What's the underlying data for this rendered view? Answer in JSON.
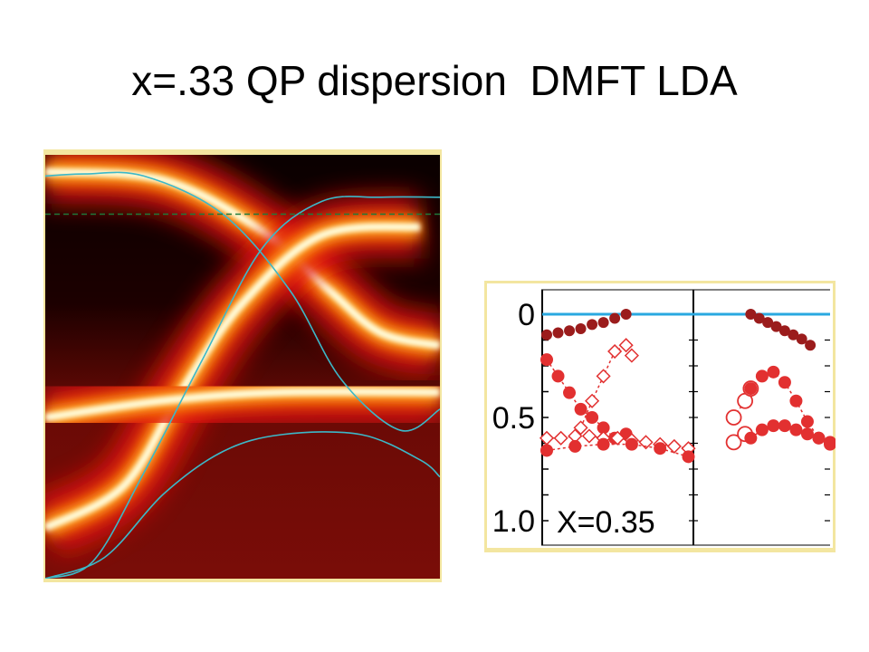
{
  "slide": {
    "title": "x=.33 QP dispersion  DMFT LDA"
  },
  "colors": {
    "lda_bands": "#3cb8c8",
    "fermi_line_dashed": "#1f7a3a",
    "heatmap_high": "#ffffe0",
    "heatmap_low": "#140000",
    "heatmap_mid": "#e02010",
    "arpes_dark": "#9b1c1c",
    "arpes_red": "#e23030",
    "arpes_fermi": "#29a8e0",
    "panel_border": "#f3e6a0"
  },
  "chart_data": [
    {
      "type": "heatmap",
      "title": "",
      "xlabel": "",
      "ylabel": "",
      "description_series": [
        {
          "name": "",
          "role": "dmft-spectral-band",
          "x": [
            0,
            0.3,
            0.55,
            0.72,
            0.85,
            1.0
          ],
          "y": [
            0.04,
            0.06,
            0.18,
            0.32,
            0.42,
            0.45
          ]
        },
        {
          "name": "",
          "role": "dmft-spectral-band",
          "x": [
            0,
            0.2,
            0.35,
            0.5,
            0.7,
            0.95
          ],
          "y": [
            0.88,
            0.78,
            0.55,
            0.35,
            0.19,
            0.17
          ]
        },
        {
          "name": "",
          "role": "dmft-spectral-band",
          "x": [
            0,
            0.3,
            0.6,
            1.0
          ],
          "y": [
            0.62,
            0.58,
            0.56,
            0.56
          ]
        }
      ],
      "lda_series": [
        {
          "name": "",
          "x": [
            0,
            0.1,
            0.25,
            0.45,
            0.62,
            0.75,
            0.9,
            1.0
          ],
          "y": [
            0.05,
            0.045,
            0.05,
            0.14,
            0.32,
            0.53,
            0.65,
            0.6
          ]
        },
        {
          "name": "",
          "x": [
            0,
            0.12,
            0.25,
            0.4,
            0.55,
            0.7,
            0.85,
            1.0
          ],
          "y": [
            1.0,
            0.96,
            0.75,
            0.48,
            0.22,
            0.11,
            0.1,
            0.1
          ]
        },
        {
          "name": "",
          "x": [
            0,
            0.15,
            0.3,
            0.45,
            0.6,
            0.8,
            0.95,
            1.0
          ],
          "y": [
            1.0,
            0.95,
            0.8,
            0.7,
            0.66,
            0.66,
            0.72,
            0.76
          ]
        }
      ],
      "fermi_level_y": 0.14
    },
    {
      "type": "scatter",
      "title": "",
      "annotation": "X=0.35",
      "ytick_labels": [
        "0",
        "0.5",
        "1.0"
      ],
      "yticks": [
        0,
        0.5,
        1.0
      ],
      "ylim": [
        0,
        1.1
      ],
      "fermi_level": 0,
      "series": [
        {
          "name": "",
          "marker": "filled-dark",
          "x": [
            0.0,
            0.04,
            0.08,
            0.12,
            0.16,
            0.2,
            0.24,
            0.28
          ],
          "y": [
            0.1,
            0.09,
            0.08,
            0.07,
            0.05,
            0.04,
            0.02,
            0.0
          ]
        },
        {
          "name": "",
          "marker": "filled-dark",
          "x": [
            0.72,
            0.75,
            0.78,
            0.81,
            0.84,
            0.87,
            0.9,
            0.93
          ],
          "y": [
            0.0,
            0.02,
            0.04,
            0.06,
            0.08,
            0.1,
            0.12,
            0.15
          ]
        },
        {
          "name": "",
          "marker": "filled-red",
          "x": [
            0.0,
            0.04,
            0.08,
            0.12,
            0.16,
            0.2,
            0.24,
            0.28
          ],
          "y": [
            0.22,
            0.3,
            0.38,
            0.46,
            0.5,
            0.55,
            0.6,
            0.58
          ]
        },
        {
          "name": "",
          "marker": "open-diamond",
          "x": [
            0.0,
            0.05,
            0.1,
            0.15,
            0.2,
            0.25,
            0.3,
            0.35,
            0.4,
            0.45,
            0.5
          ],
          "y": [
            0.6,
            0.6,
            0.59,
            0.59,
            0.6,
            0.6,
            0.61,
            0.62,
            0.63,
            0.64,
            0.65
          ]
        },
        {
          "name": "",
          "marker": "open-diamond",
          "x": [
            0.12,
            0.16,
            0.2,
            0.24,
            0.28,
            0.3
          ],
          "y": [
            0.55,
            0.42,
            0.3,
            0.18,
            0.15,
            0.2
          ]
        },
        {
          "name": "",
          "marker": "filled-red",
          "x": [
            0.0,
            0.1,
            0.2,
            0.3,
            0.4,
            0.5
          ],
          "y": [
            0.66,
            0.64,
            0.63,
            0.63,
            0.65,
            0.69
          ]
        },
        {
          "name": "",
          "marker": "open-circle",
          "x": [
            0.66,
            0.7,
            0.72
          ],
          "y": [
            0.5,
            0.42,
            0.36
          ]
        },
        {
          "name": "",
          "marker": "open-circle",
          "x": [
            0.66,
            0.7
          ],
          "y": [
            0.62,
            0.58
          ]
        },
        {
          "name": "",
          "marker": "filled-red",
          "x": [
            0.72,
            0.76,
            0.8,
            0.84,
            0.88,
            0.92,
            0.96,
            1.0
          ],
          "y": [
            0.36,
            0.3,
            0.28,
            0.33,
            0.42,
            0.52,
            0.6,
            0.63
          ]
        },
        {
          "name": "",
          "marker": "filled-red",
          "x": [
            0.72,
            0.76,
            0.8,
            0.84,
            0.88,
            0.92,
            0.96,
            1.0
          ],
          "y": [
            0.6,
            0.56,
            0.54,
            0.54,
            0.56,
            0.58,
            0.6,
            0.62
          ]
        }
      ]
    }
  ]
}
